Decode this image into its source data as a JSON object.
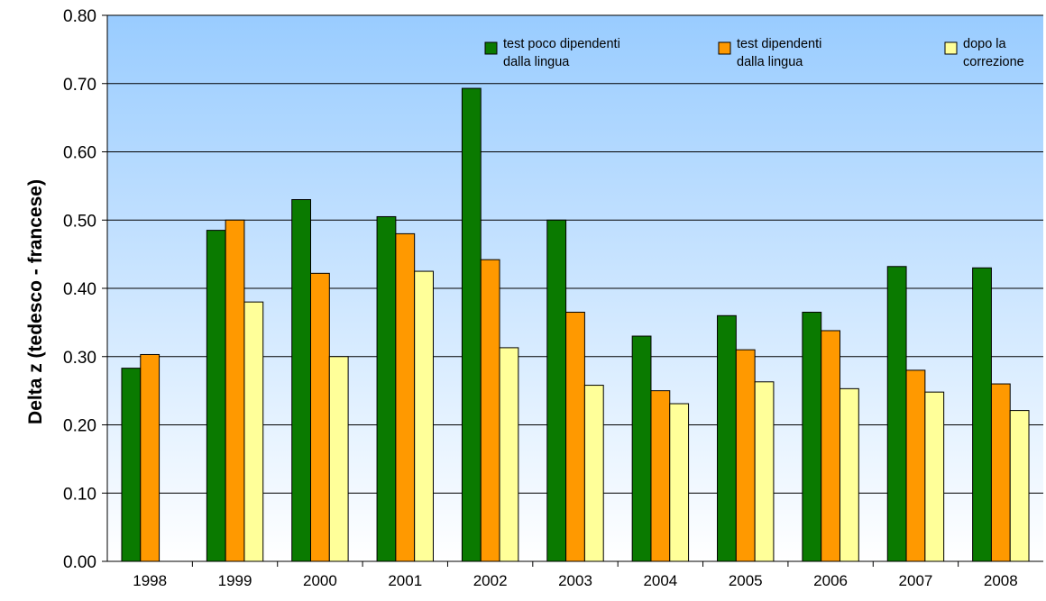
{
  "chart_data": {
    "type": "bar",
    "title": "",
    "xlabel": "",
    "ylabel": "Delta z (tedesco - francese)",
    "ylim": [
      0,
      0.8
    ],
    "yticks": [
      "0.00",
      "0.10",
      "0.20",
      "0.30",
      "0.40",
      "0.50",
      "0.60",
      "0.70",
      "0.80"
    ],
    "categories": [
      "1998",
      "1999",
      "2000",
      "2001",
      "2002",
      "2003",
      "2004",
      "2005",
      "2006",
      "2007",
      "2008"
    ],
    "series": [
      {
        "name_lines": [
          "test poco dipendenti",
          "dalla lingua"
        ],
        "color": "#0a7a00",
        "values": [
          0.283,
          0.485,
          0.53,
          0.505,
          0.693,
          0.5,
          0.33,
          0.36,
          0.365,
          0.432,
          0.43
        ]
      },
      {
        "name_lines": [
          "test dipendenti",
          "dalla lingua"
        ],
        "color": "#ff9900",
        "values": [
          0.303,
          0.5,
          0.422,
          0.48,
          0.442,
          0.365,
          0.25,
          0.31,
          0.338,
          0.28,
          0.26
        ]
      },
      {
        "name_lines": [
          "dopo la",
          "correzione"
        ],
        "color": "#ffff99",
        "values": [
          null,
          0.38,
          0.3,
          0.425,
          0.313,
          0.258,
          0.231,
          0.263,
          0.253,
          0.248,
          0.221
        ]
      }
    ],
    "grid": true,
    "legend_position": "top",
    "background_gradient": [
      "#99ccff",
      "#ffffff"
    ]
  }
}
